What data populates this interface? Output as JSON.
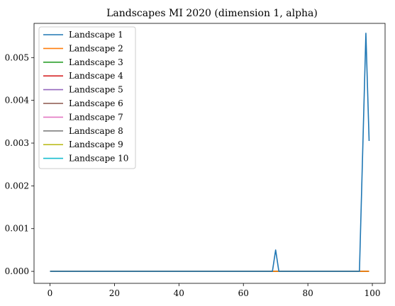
{
  "chart_data": {
    "type": "line",
    "title": "Landscapes MI 2020 (dimension 1, alpha)",
    "xlabel": "",
    "ylabel": "",
    "xlim": [
      -4.95,
      103.95
    ],
    "ylim": [
      -0.00028,
      0.0058
    ],
    "xticks": [
      0,
      20,
      40,
      60,
      80,
      100
    ],
    "xtick_labels": [
      "0",
      "20",
      "40",
      "60",
      "80",
      "100"
    ],
    "yticks": [
      0,
      0.001,
      0.002,
      0.003,
      0.004,
      0.005
    ],
    "ytick_labels": [
      "0.000",
      "0.001",
      "0.002",
      "0.003",
      "0.004",
      "0.005"
    ],
    "grid": false,
    "legend_position": "upper-left",
    "x_start": 0,
    "x_end": 99,
    "series": [
      {
        "name": "Landscape 1",
        "color": "#1f77b4",
        "points": [
          [
            0,
            0
          ],
          [
            69,
            0
          ],
          [
            70,
            0.0005
          ],
          [
            71,
            0
          ],
          [
            96,
            0
          ],
          [
            98,
            0.00557
          ],
          [
            99,
            0.00305
          ]
        ]
      },
      {
        "name": "Landscape 2",
        "color": "#ff7f0e",
        "points": [
          [
            0,
            0
          ],
          [
            99,
            0
          ]
        ]
      },
      {
        "name": "Landscape 3",
        "color": "#2ca02c",
        "points": [
          [
            0,
            0
          ],
          [
            99,
            0
          ]
        ]
      },
      {
        "name": "Landscape 4",
        "color": "#d62728",
        "points": [
          [
            0,
            0
          ],
          [
            99,
            0
          ]
        ]
      },
      {
        "name": "Landscape 5",
        "color": "#9467bd",
        "points": [
          [
            0,
            0
          ],
          [
            99,
            0
          ]
        ]
      },
      {
        "name": "Landscape 6",
        "color": "#8c564b",
        "points": [
          [
            0,
            0
          ],
          [
            99,
            0
          ]
        ]
      },
      {
        "name": "Landscape 7",
        "color": "#e377c2",
        "points": [
          [
            0,
            0
          ],
          [
            99,
            0
          ]
        ]
      },
      {
        "name": "Landscape 8",
        "color": "#7f7f7f",
        "points": [
          [
            0,
            0
          ],
          [
            99,
            0
          ]
        ]
      },
      {
        "name": "Landscape 9",
        "color": "#bcbd22",
        "points": [
          [
            0,
            0
          ],
          [
            99,
            0
          ]
        ]
      },
      {
        "name": "Landscape 10",
        "color": "#17becf",
        "points": [
          [
            0,
            0
          ],
          [
            99,
            0
          ]
        ]
      }
    ]
  }
}
